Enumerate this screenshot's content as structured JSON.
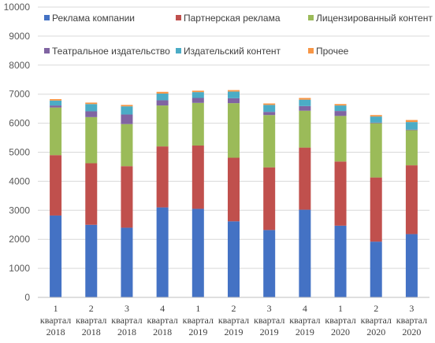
{
  "chart_data": {
    "type": "bar",
    "stacked": true,
    "title": "",
    "xlabel": "",
    "ylabel": "",
    "ylim": [
      0,
      10000
    ],
    "yticks": [
      0,
      1000,
      2000,
      3000,
      4000,
      5000,
      6000,
      7000,
      8000,
      9000,
      10000
    ],
    "grid": true,
    "legend_position": "top",
    "categories": [
      [
        "1",
        "квартал",
        "2018"
      ],
      [
        "2",
        "квартал",
        "2018"
      ],
      [
        "3",
        "квартал",
        "2018"
      ],
      [
        "4",
        "квартал",
        "2018"
      ],
      [
        "1",
        "квартал",
        "2019"
      ],
      [
        "2",
        "квартал",
        "2019"
      ],
      [
        "3",
        "квартал",
        "2019"
      ],
      [
        "4",
        "квартал",
        "2019"
      ],
      [
        "1",
        "квартал",
        "2020"
      ],
      [
        "2",
        "квартал",
        "2020"
      ],
      [
        "3",
        "квартал",
        "2020"
      ]
    ],
    "series": [
      {
        "name": "Реклама компании",
        "color": "#4472C4",
        "values": [
          2820,
          2500,
          2400,
          3100,
          3050,
          2620,
          2320,
          3020,
          2470,
          1920,
          2180
        ]
      },
      {
        "name": "Партнерская реклама",
        "color": "#C0504D",
        "values": [
          2080,
          2120,
          2120,
          2100,
          2180,
          2190,
          2160,
          2140,
          2210,
          2210,
          2370
        ]
      },
      {
        "name": "Лицензированный контент",
        "color": "#9BBB59",
        "values": [
          1640,
          1590,
          1450,
          1410,
          1470,
          1880,
          1800,
          1270,
          1570,
          1870,
          1210
        ]
      },
      {
        "name": "Театральное издательство",
        "color": "#8064A2",
        "values": [
          70,
          200,
          330,
          180,
          170,
          170,
          110,
          160,
          170,
          20,
          20
        ]
      },
      {
        "name": "Издательский контент",
        "color": "#4BACC6",
        "values": [
          170,
          250,
          280,
          230,
          200,
          230,
          240,
          220,
          190,
          210,
          260
        ]
      },
      {
        "name": "Прочее",
        "color": "#F79646",
        "values": [
          50,
          50,
          50,
          60,
          50,
          50,
          50,
          60,
          50,
          50,
          70
        ]
      }
    ]
  }
}
